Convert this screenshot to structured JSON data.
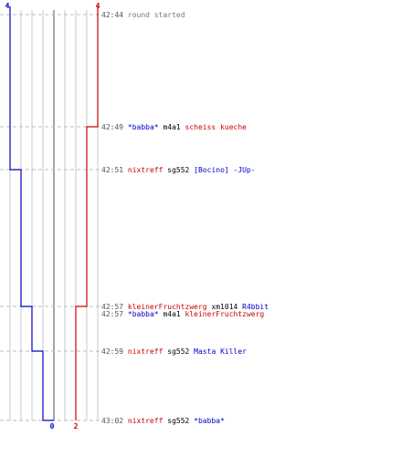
{
  "chart_data": {
    "type": "line",
    "teams": {
      "blue": {
        "color": "#0000cc",
        "start_score": "4",
        "end_score": "0"
      },
      "red": {
        "color": "#cc0000",
        "start_score": "4",
        "end_score": "2"
      }
    },
    "score_range": [
      0,
      4
    ],
    "blue_steps": [
      {
        "time": "42:44",
        "score": 4
      },
      {
        "time": "42:51",
        "score": 3
      },
      {
        "time": "42:57",
        "score": 2
      },
      {
        "time": "42:59",
        "score": 1
      },
      {
        "time": "43:02",
        "score": 0
      }
    ],
    "red_steps": [
      {
        "time": "42:44",
        "score": 4
      },
      {
        "time": "42:49",
        "score": 3
      },
      {
        "time": "42:57",
        "score": 2
      }
    ],
    "events": [
      {
        "time": "42:44",
        "text": "round started",
        "killer": "",
        "killer_team": "",
        "weapon": "",
        "victim": "",
        "victim_team": ""
      },
      {
        "time": "42:49",
        "text": "",
        "killer": "*babba*",
        "killer_team": "blue",
        "weapon": "m4a1",
        "victim": "scheiss kueche",
        "victim_team": "red"
      },
      {
        "time": "42:51",
        "text": "",
        "killer": "nixtreff",
        "killer_team": "red",
        "weapon": "sg552",
        "victim": "[Bocino] -JUp-",
        "victim_team": "blue"
      },
      {
        "time": "42:57",
        "text": "",
        "killer": "kleinerFruchtzwerg",
        "killer_team": "red",
        "weapon": "xm1014",
        "victim": "R4bbit",
        "victim_team": "blue"
      },
      {
        "time": "42:57",
        "text": "",
        "killer": "*babba*",
        "killer_team": "blue",
        "weapon": "m4a1",
        "victim": "kleinerFruchtzwerg",
        "victim_team": "red"
      },
      {
        "time": "42:59",
        "text": "",
        "killer": "nixtreff",
        "killer_team": "red",
        "weapon": "sg552",
        "victim": "Masta Killer",
        "victim_team": "blue"
      },
      {
        "time": "43:02",
        "text": "",
        "killer": "nixtreff",
        "killer_team": "red",
        "weapon": "sg552",
        "victim": "*babba*",
        "victim_team": "blue"
      }
    ]
  }
}
